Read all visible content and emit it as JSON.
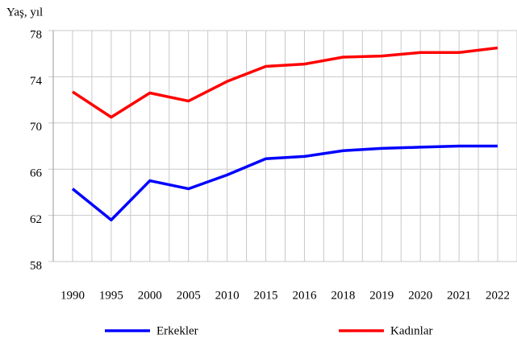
{
  "chart_data": {
    "type": "line",
    "y_label": "Yaş, yıl",
    "categories": [
      "1990",
      "1995",
      "2000",
      "2005",
      "2010",
      "2015",
      "2016",
      "2018",
      "2019",
      "2020",
      "2021",
      "2022"
    ],
    "series": [
      {
        "name": "Erkekler",
        "color": "#0000ff",
        "values": [
          64.3,
          61.6,
          65.0,
          64.3,
          65.5,
          66.9,
          67.1,
          67.6,
          67.8,
          67.9,
          68.0,
          68.0
        ]
      },
      {
        "name": "Kadınlar",
        "color": "#ff0000",
        "values": [
          72.7,
          70.5,
          72.6,
          71.9,
          73.6,
          74.9,
          75.1,
          75.7,
          75.8,
          76.1,
          76.1,
          76.5
        ]
      }
    ],
    "ylim": [
      58,
      78
    ],
    "yticks": [
      58,
      62,
      66,
      70,
      74,
      78
    ],
    "grid": true,
    "legend": "bottom"
  }
}
